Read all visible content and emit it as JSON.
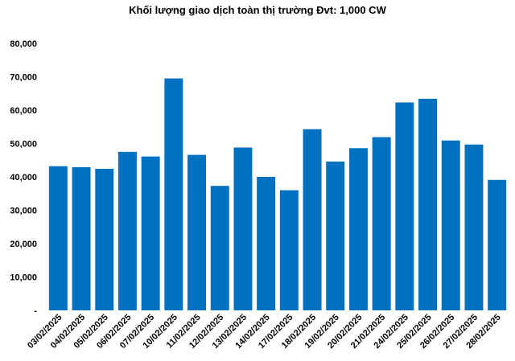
{
  "chart_data": {
    "type": "bar",
    "title": "Khối lượng giao dịch toàn thị trường Đvt: 1,000 CW",
    "xlabel": "",
    "ylabel": "",
    "ylim": [
      0,
      80000
    ],
    "yticks": [
      0,
      10000,
      20000,
      30000,
      40000,
      50000,
      60000,
      70000,
      80000
    ],
    "ytick_labels": [
      "-",
      "10,000",
      "20,000",
      "30,000",
      "40,000",
      "50,000",
      "60,000",
      "70,000",
      "80,000"
    ],
    "grid": false,
    "bar_color": "#0070C0",
    "categories": [
      "03/02/2025",
      "04/02/2025",
      "05/02/2025",
      "06/02/2025",
      "07/02/2025",
      "10/02/2025",
      "11/02/2025",
      "12/02/2025",
      "13/02/2025",
      "14/02/2025",
      "17/02/2025",
      "18/02/2025",
      "19/02/2025",
      "20/02/2025",
      "21/02/2025",
      "24/02/2025",
      "25/02/2025",
      "26/02/2025",
      "27/02/2025",
      "28/02/2025"
    ],
    "values": [
      43200,
      42900,
      42400,
      47500,
      46100,
      69500,
      46600,
      37300,
      48800,
      40000,
      36000,
      54300,
      44600,
      48600,
      51900,
      62300,
      63400,
      50900,
      49700,
      39100
    ]
  }
}
